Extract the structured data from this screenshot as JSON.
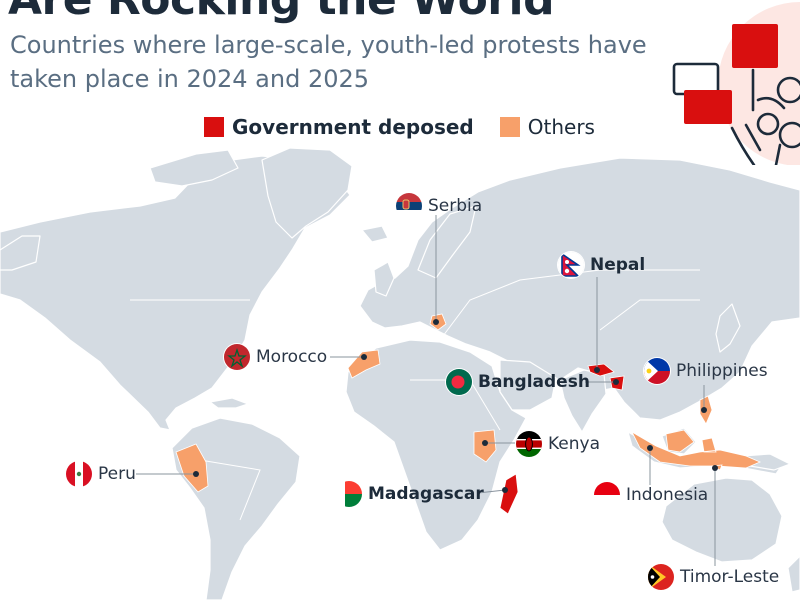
{
  "title": "Are Rocking the World",
  "subtitle": "Countries where large-scale, youth-led protests have taken place in 2024 and 2025",
  "legend": {
    "deposed": {
      "label": "Government deposed",
      "color": "#d90f0f"
    },
    "others": {
      "label": "Others",
      "color": "#f7a06a"
    }
  },
  "colors": {
    "ocean": "#ffffff",
    "land": "#d4dbe2",
    "border": "#ffffff",
    "leader": "#8a949e",
    "dot": "#1d2b3a"
  },
  "illustration": {
    "icon": "protest-crowd-icon",
    "sign_color": "#d90f0f",
    "circle_color": "#fde7e3"
  },
  "countries": [
    {
      "id": "serbia",
      "name": "Serbia",
      "status": "others",
      "flag": "serbia-flag-icon"
    },
    {
      "id": "nepal",
      "name": "Nepal",
      "status": "deposed",
      "flag": "nepal-flag-icon"
    },
    {
      "id": "morocco",
      "name": "Morocco",
      "status": "others",
      "flag": "morocco-flag-icon"
    },
    {
      "id": "bangladesh",
      "name": "Bangladesh",
      "status": "deposed",
      "flag": "bangladesh-flag-icon"
    },
    {
      "id": "philippines",
      "name": "Philippines",
      "status": "others",
      "flag": "philippines-flag-icon"
    },
    {
      "id": "kenya",
      "name": "Kenya",
      "status": "others",
      "flag": "kenya-flag-icon"
    },
    {
      "id": "peru",
      "name": "Peru",
      "status": "others",
      "flag": "peru-flag-icon"
    },
    {
      "id": "madagascar",
      "name": "Madagascar",
      "status": "deposed",
      "flag": "madagascar-flag-icon"
    },
    {
      "id": "indonesia",
      "name": "Indonesia",
      "status": "others",
      "flag": "indonesia-flag-icon"
    },
    {
      "id": "timor",
      "name": "Timor-Leste",
      "status": "others",
      "flag": "timor-leste-flag-icon"
    }
  ]
}
